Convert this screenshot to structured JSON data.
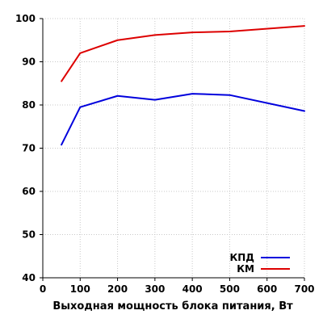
{
  "chart_data": {
    "type": "line",
    "title": "",
    "xlabel": "Выходная мощность блока питания, Вт",
    "ylabel": "",
    "xlim": [
      0,
      700
    ],
    "ylim": [
      40,
      100
    ],
    "x_ticks": [
      "0",
      "100",
      "200",
      "300",
      "400",
      "500",
      "600",
      "700"
    ],
    "y_ticks": [
      "40",
      "50",
      "60",
      "70",
      "80",
      "90",
      "100"
    ],
    "grid": true,
    "legend_position": "bottom-right",
    "series": [
      {
        "name": "КПД",
        "color": "#0000dd",
        "x": [
          50,
          100,
          200,
          300,
          400,
          500,
          700
        ],
        "values": [
          70.8,
          79.5,
          82.1,
          81.2,
          82.6,
          82.3,
          78.6
        ]
      },
      {
        "name": "КМ",
        "color": "#dd0000",
        "x": [
          50,
          100,
          200,
          300,
          400,
          500,
          700
        ],
        "values": [
          85.5,
          92.0,
          95.0,
          96.2,
          96.8,
          97.0,
          98.3
        ]
      }
    ]
  }
}
